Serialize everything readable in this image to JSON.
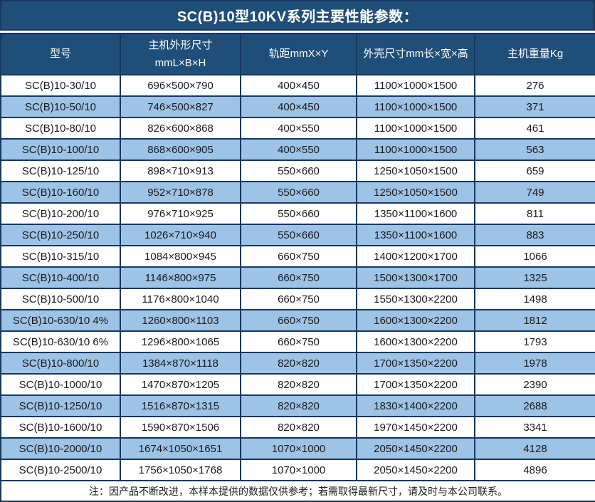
{
  "title": "SC(B)10型10KV系列主要性能参数：",
  "colors": {
    "title_bg": "#1F4E79",
    "header_bg": "#1F4E79",
    "border": "#17375E",
    "stripe_row_bg": "#9DC3E6",
    "header_text": "#FFFFFF",
    "cell_text": "#1A1A1A"
  },
  "table": {
    "columns": [
      {
        "label": "型号"
      },
      {
        "label": "主机外形尺寸\nmmL×B×H"
      },
      {
        "label": "轨距mmX×Y"
      },
      {
        "label": "外壳尺寸mm长×宽×高"
      },
      {
        "label": "主机重量Kg"
      }
    ],
    "rows": [
      [
        "SC(B)10-30/10",
        "696×500×790",
        "400×450",
        "1100×1000×1500",
        "276"
      ],
      [
        "SC(B)10-50/10",
        "746×500×827",
        "400×450",
        "1100×1000×1500",
        "371"
      ],
      [
        "SC(B)10-80/10",
        "826×600×868",
        "400×550",
        "1100×1000×1500",
        "461"
      ],
      [
        "SC(B)10-100/10",
        "868×600×905",
        "400×550",
        "1100×1000×1500",
        "563"
      ],
      [
        "SC(B)10-125/10",
        "898×710×913",
        "550×660",
        "1250×1050×1500",
        "659"
      ],
      [
        "SC(B)10-160/10",
        "952×710×878",
        "550×660",
        "1250×1050×1500",
        "749"
      ],
      [
        "SC(B)10-200/10",
        "976×710×925",
        "550×660",
        "1350×1100×1600",
        "811"
      ],
      [
        "SC(B)10-250/10",
        "1026×710×940",
        "550×660",
        "1350×1100×1600",
        "883"
      ],
      [
        "SC(B)10-315/10",
        "1084×800×945",
        "660×750",
        "1400×1200×1700",
        "1066"
      ],
      [
        "SC(B)10-400/10",
        "1146×800×975",
        "660×750",
        "1500×1300×1700",
        "1325"
      ],
      [
        "SC(B)10-500/10",
        "1176×800×1040",
        "660×750",
        "1550×1300×2200",
        "1498"
      ],
      [
        "SC(B)10-630/10 4%",
        "1260×800×1103",
        "660×750",
        "1600×1300×2200",
        "1812"
      ],
      [
        "SC(B)10-630/10 6%",
        "1296×800×1065",
        "660×750",
        "1600×1300×2200",
        "1793"
      ],
      [
        "SC(B)10-800/10",
        "1384×870×1118",
        "820×820",
        "1700×1350×2200",
        "1978"
      ],
      [
        "SC(B)10-1000/10",
        "1470×870×1205",
        "820×820",
        "1700×1350×2200",
        "2390"
      ],
      [
        "SC(B)10-1250/10",
        "1516×870×1315",
        "820×820",
        "1830×1400×2200",
        "2688"
      ],
      [
        "SC(B)10-1600/10",
        "1590×870×1506",
        "820×820",
        "1970×1450×2200",
        "3341"
      ],
      [
        "SC(B)10-2000/10",
        "1674×1050×1651",
        "1070×1000",
        "2050×1450×2200",
        "4128"
      ],
      [
        "SC(B)10-2500/10",
        "1756×1050×1768",
        "1070×1000",
        "2050×1450×2200",
        "4896"
      ]
    ]
  },
  "note": "注：因产品不断改进，本样本提供的数据仅供参考；若需取得最新尺寸，请及时与本公司联系。"
}
